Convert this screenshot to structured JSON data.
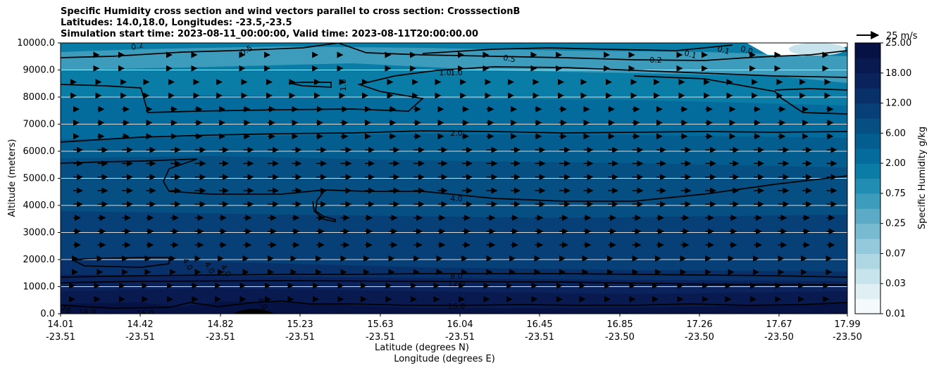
{
  "chart_data": {
    "type": "contour",
    "title_lines": [
      "Specific Humidity cross section and wind vectors parallel to cross section: CrosssectionB",
      "Latitudes: 14.0,18.0, Longitudes: -23.5,-23.5",
      "Simulation start time: 2023-08-11_00:00:00, Valid time: 2023-08-11T20:00:00.00"
    ],
    "ylabel": "Altitude (meters)",
    "xlabel_lines": [
      "Latitude (degrees N)",
      "Longitude (degrees E)"
    ],
    "ylim": [
      0,
      10000
    ],
    "yticks": [
      0,
      1000,
      2000,
      3000,
      4000,
      5000,
      6000,
      7000,
      8000,
      9000,
      10000
    ],
    "ytick_labels": [
      "0.0",
      "1000.0",
      "2000.0",
      "3000.0",
      "4000.0",
      "5000.0",
      "6000.0",
      "7000.0",
      "8000.0",
      "9000.0",
      "10000.0"
    ],
    "xtick_lat": [
      "14.01",
      "14.42",
      "14.82",
      "15.23",
      "15.63",
      "16.04",
      "16.45",
      "16.85",
      "17.26",
      "17.67",
      "17.99"
    ],
    "xtick_lon": [
      "-23.51",
      "-23.51",
      "-23.51",
      "-23.51",
      "-23.51",
      "-23.51",
      "-23.51",
      "-23.50",
      "-23.50",
      "-23.50",
      "-23.50"
    ],
    "colorbar": {
      "label": "Specific Humidity g/kg",
      "tick_labels": [
        "0.01",
        "0.03",
        "0.07",
        "0.25",
        "0.75",
        "2.00",
        "6.00",
        "12.00",
        "18.00",
        "25.00"
      ],
      "colors": [
        "#f4fafc",
        "#dfeff4",
        "#c7e4ec",
        "#aed7e3",
        "#93c9da",
        "#78bad0",
        "#5babc6",
        "#3d9cbc",
        "#228db2",
        "#0a7da7",
        "#046c9c",
        "#045d8f",
        "#054f83",
        "#074077",
        "#08316a",
        "#0a235d",
        "#081a4f",
        "#061243"
      ]
    },
    "quiver_key": {
      "label": "25 m/s"
    },
    "contour_labels": [
      {
        "text": "0.2"
      },
      {
        "text": "0.5"
      },
      {
        "text": "0.5"
      },
      {
        "text": "1.0"
      },
      {
        "text": "1.0"
      },
      {
        "text": "1.0"
      },
      {
        "text": "0.2"
      },
      {
        "text": "0.1"
      },
      {
        "text": "0.1"
      },
      {
        "text": "0.0"
      },
      {
        "text": "2.0"
      },
      {
        "text": "4.0"
      },
      {
        "text": "8.0"
      },
      {
        "text": "12.0"
      },
      {
        "text": "16.0"
      },
      {
        "text": "16.0"
      },
      {
        "text": "16.0"
      },
      {
        "text": "16"
      },
      {
        "text": "4.0"
      },
      {
        "text": "4.0"
      },
      {
        "text": "4.0"
      },
      {
        "text": "4.0"
      }
    ]
  }
}
